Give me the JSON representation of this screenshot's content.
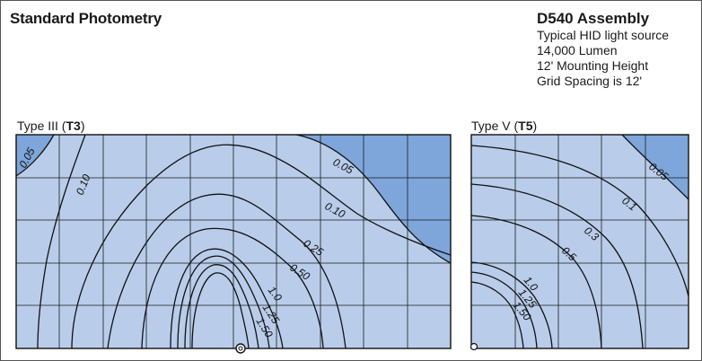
{
  "header": {
    "title": "Standard Photometry"
  },
  "info": {
    "heading": "D540 Assembly",
    "lines": [
      "Typical HID light source",
      "14,000 Lumen",
      "12' Mounting Height",
      "Grid Spacing is 12'"
    ]
  },
  "diagrams": {
    "t3": {
      "prefix": "Type III (",
      "code": "T3",
      "suffix": ")",
      "contour_labels": [
        "0.05",
        "0.10",
        "0.05",
        "0.10",
        "0.25",
        "0.50",
        "1.0",
        "1.25",
        "1.50"
      ]
    },
    "t5": {
      "prefix": "Type V (",
      "code": "T5",
      "suffix": ")",
      "contour_labels": [
        "0.05",
        "0.1",
        "0.3",
        "0.5",
        "1.0",
        "1.25",
        "1.50"
      ]
    }
  },
  "colors": {
    "light_fill": "#b9cdea",
    "dark_fill": "#7ea6da",
    "line": "#111111"
  }
}
